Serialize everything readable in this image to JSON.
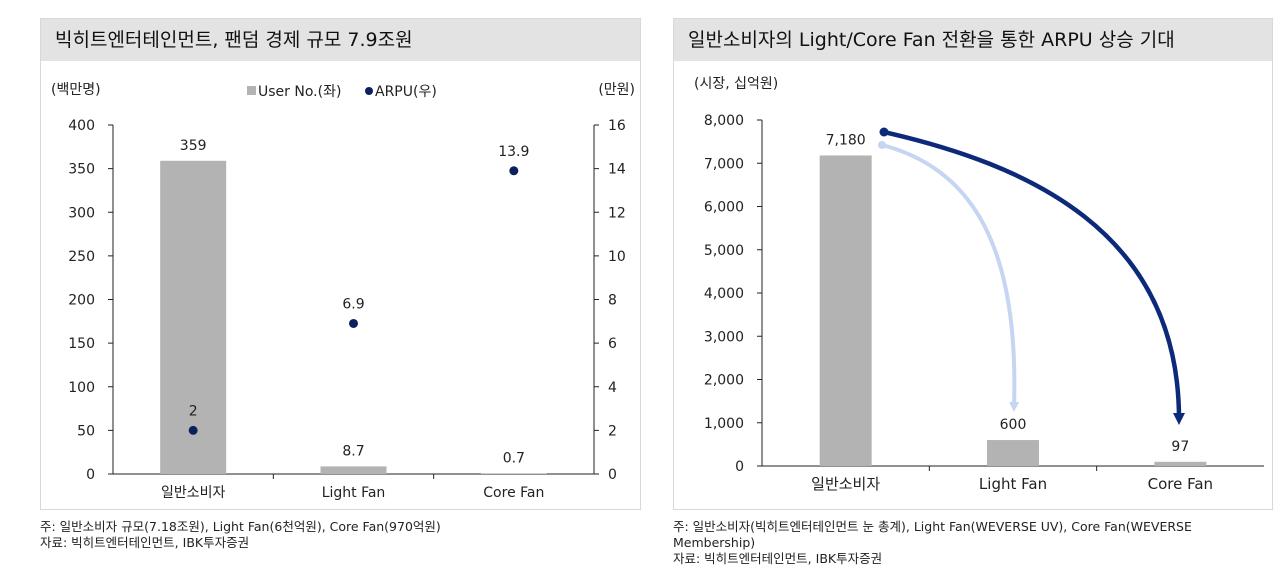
{
  "left_panel": {
    "title": "빅히트엔터테인먼트, 팬덤 경제 규모 7.9조원",
    "left_unit": "(백만명)",
    "right_unit": "(만원)",
    "legend_bar": "User No.(좌)",
    "legend_dot": "ARPU(우)",
    "bar_color": "#b3b3b3",
    "dot_color": "#0d1f5c"
  },
  "right_panel": {
    "title": "일반소비자의 Light/Core Fan 전환을 통한 ARPU 상승 기대",
    "unit": "(시장, 십억원)",
    "bar_color": "#b3b3b3",
    "arrow_light_color": "#c6d5f2",
    "arrow_dark_color": "#0d2a7a"
  },
  "notes": {
    "left_line1": "주: 일반소비자 규모(7.18조원), Light Fan(6천억원), Core Fan(970억원)",
    "left_line2": "자료: 빅히트엔터테인먼트, IBK투자증권",
    "right_line1": "주: 일반소비자(빅히트엔터테인먼트 눈 총계), Light Fan(WEVERSE UV), Core Fan(WEVERSE",
    "right_line2": "Membership)",
    "right_line3": "자료: 빅히트엔터테인먼트, IBK투자증권"
  },
  "chart_data": [
    {
      "type": "bar",
      "categories": [
        "일반소비자",
        "Light Fan",
        "Core Fan"
      ],
      "series": [
        {
          "name": "User No.(좌)",
          "type": "bar",
          "axis": "left",
          "values": [
            359,
            8.7,
            0.7
          ],
          "labels": [
            "359",
            "8.7",
            "0.7"
          ]
        },
        {
          "name": "ARPU(우)",
          "type": "scatter",
          "axis": "right",
          "values": [
            2,
            6.9,
            13.9
          ],
          "labels": [
            "2",
            "6.9",
            "13.9"
          ]
        }
      ],
      "ylim": [
        0,
        400
      ],
      "yticks": [
        "0",
        "50",
        "100",
        "150",
        "200",
        "250",
        "300",
        "350",
        "400"
      ],
      "y2lim": [
        0,
        16
      ],
      "y2ticks": [
        "0",
        "2",
        "4",
        "6",
        "8",
        "10",
        "12",
        "14",
        "16"
      ],
      "legend": "top-center",
      "grid": false
    },
    {
      "type": "bar",
      "categories": [
        "일반소비자",
        "Light Fan",
        "Core Fan"
      ],
      "values": [
        7180,
        600,
        97
      ],
      "labels": [
        "7,180",
        "600",
        "97"
      ],
      "ylim": [
        0,
        8000
      ],
      "yticks": [
        "0",
        "1,000",
        "2,000",
        "3,000",
        "4,000",
        "5,000",
        "6,000",
        "7,000",
        "8,000"
      ],
      "grid": false
    }
  ]
}
